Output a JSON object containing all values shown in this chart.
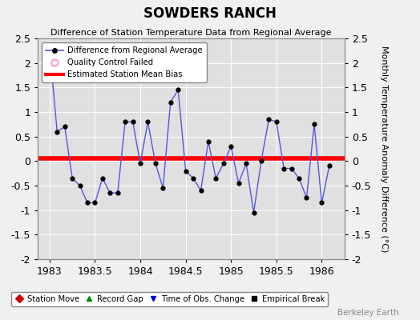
{
  "title": "SOWDERS RANCH",
  "subtitle": "Difference of Station Temperature Data from Regional Average",
  "ylabel": "Monthly Temperature Anomaly Difference (°C)",
  "xlabel": "",
  "watermark": "Berkeley Earth",
  "xlim": [
    1982.87,
    1986.25
  ],
  "ylim": [
    -2.0,
    2.5
  ],
  "yticks": [
    -2.0,
    -1.5,
    -1.0,
    -0.5,
    0.0,
    0.5,
    1.0,
    1.5,
    2.0,
    2.5
  ],
  "xticks": [
    1983,
    1983.5,
    1984,
    1984.5,
    1985,
    1985.5,
    1986
  ],
  "bias": 0.05,
  "line_color": "#5555dd",
  "marker_color": "#000000",
  "bias_color": "#ff0000",
  "bg_color": "#e0e0e0",
  "fig_color": "#f0f0f0",
  "x": [
    1983.0,
    1983.083,
    1983.167,
    1983.25,
    1983.333,
    1983.417,
    1983.5,
    1983.583,
    1983.667,
    1983.75,
    1983.833,
    1983.917,
    1984.0,
    1984.083,
    1984.167,
    1984.25,
    1984.333,
    1984.417,
    1984.5,
    1984.583,
    1984.667,
    1984.75,
    1984.833,
    1984.917,
    1985.0,
    1985.083,
    1985.167,
    1985.25,
    1985.333,
    1985.417,
    1985.5,
    1985.583,
    1985.667,
    1985.75,
    1985.833,
    1985.917,
    1986.0,
    1986.083
  ],
  "y": [
    2.3,
    0.6,
    0.7,
    -0.35,
    -0.5,
    -0.85,
    -0.85,
    -0.35,
    -0.65,
    -0.65,
    0.8,
    0.8,
    -0.05,
    0.8,
    -0.05,
    -0.55,
    1.2,
    1.45,
    -0.2,
    -0.35,
    -0.6,
    0.4,
    -0.35,
    -0.05,
    0.3,
    -0.45,
    -0.05,
    -1.05,
    0.0,
    0.85,
    0.8,
    -0.15,
    -0.15,
    -0.35,
    -0.75,
    0.75,
    -0.85,
    -0.1
  ]
}
